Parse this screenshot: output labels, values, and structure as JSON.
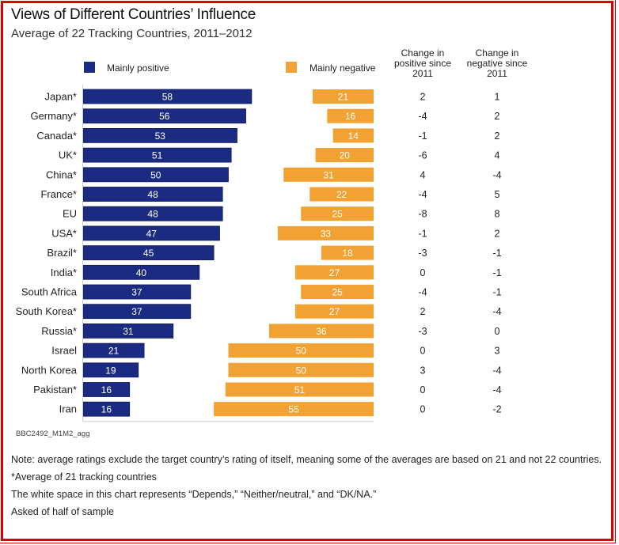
{
  "chart_data": {
    "type": "bar",
    "title": "Views of Different Countries’ Influence",
    "subtitle": "Average of 22 Tracking Countries, 2011–2012",
    "categories": [
      "Japan*",
      "Germany*",
      "Canada*",
      "UK*",
      "China*",
      "France*",
      "EU",
      "USA*",
      "Brazil*",
      "India*",
      "South Africa",
      "South Korea*",
      "Russia*",
      "Israel",
      "North Korea",
      "Pakistan*",
      "Iran"
    ],
    "series": [
      {
        "name": "Mainly positive",
        "color": "#1c2b82",
        "values": [
          58,
          56,
          53,
          51,
          50,
          48,
          48,
          47,
          45,
          40,
          37,
          37,
          31,
          21,
          19,
          16,
          16
        ]
      },
      {
        "name": "Mainly negative",
        "color": "#f2a233",
        "values": [
          21,
          16,
          14,
          20,
          31,
          22,
          25,
          33,
          18,
          27,
          25,
          27,
          36,
          50,
          50,
          51,
          55
        ]
      }
    ],
    "change_columns": [
      {
        "header": [
          "Change in",
          "positive since",
          "2011"
        ],
        "values": [
          "2",
          "-4",
          "-1",
          "-6",
          "4",
          "-4",
          "-8",
          "-1",
          "-3",
          "0",
          "-4",
          "2",
          "-3",
          "0",
          "3",
          "0",
          "0"
        ]
      },
      {
        "header": [
          "Change in",
          "negative since",
          "2011"
        ],
        "values": [
          "1",
          "2",
          "2",
          "4",
          "-4",
          "5",
          "8",
          "2",
          "-1",
          "-1",
          "-1",
          "-4",
          "0",
          "3",
          "-4",
          "-4",
          "-2"
        ]
      }
    ],
    "xlim": [
      0,
      100
    ],
    "legend_placement": "top",
    "grid": false
  },
  "source_code": "BBC2492_M1M2_agg",
  "notes": [
    "Note: average ratings exclude the target country’s rating of itself, meaning some of the averages are based on 21 and not 22 countries.",
    "*Average of 21 tracking countries",
    "The white space in this chart represents “Depends,” “Neither/neutral,” and “DK/NA.”",
    "Asked of half of sample"
  ]
}
